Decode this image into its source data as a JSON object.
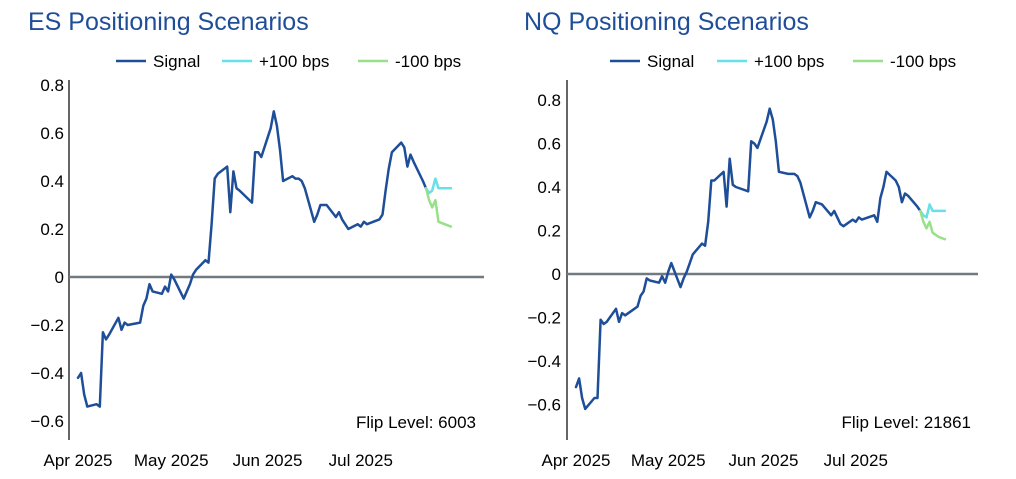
{
  "colors": {
    "signal": "#1f4e99",
    "plus": "#67e0e8",
    "minus": "#98e08a",
    "zero": "#707a80",
    "title": "#1f4e99"
  },
  "chart_data": [
    {
      "type": "line",
      "title": "ES Positioning Scenarios",
      "legend_position": "top",
      "grid": false,
      "ylim": [
        -0.67,
        0.84
      ],
      "y_ticks": [
        -0.6,
        -0.4,
        -0.2,
        0,
        0.2,
        0.4,
        0.6,
        0.8
      ],
      "y_tick_labels": [
        "−0.6",
        "−0.4",
        "−0.2",
        "0",
        "0.2",
        "0.4",
        "0.6",
        "0.8"
      ],
      "x_tick_labels": [
        "Apr 2025",
        "May 2025",
        "Jun 2025",
        "Jul 2025"
      ],
      "x_tick_positions": [
        "2025-04-01",
        "2025-05-01",
        "2025-06-01",
        "2025-07-01"
      ],
      "x_range": [
        "2025-04-01",
        "2025-07-31"
      ],
      "annotation": "Flip Level: 6003",
      "series": [
        {
          "name": "Signal",
          "color": "signal",
          "points": [
            [
              "2025-04-01",
              -0.42
            ],
            [
              "2025-04-02",
              -0.4
            ],
            [
              "2025-04-03",
              -0.49
            ],
            [
              "2025-04-04",
              -0.54
            ],
            [
              "2025-04-07",
              -0.53
            ],
            [
              "2025-04-08",
              -0.54
            ],
            [
              "2025-04-09",
              -0.23
            ],
            [
              "2025-04-10",
              -0.26
            ],
            [
              "2025-04-11",
              -0.24
            ],
            [
              "2025-04-14",
              -0.17
            ],
            [
              "2025-04-15",
              -0.22
            ],
            [
              "2025-04-16",
              -0.19
            ],
            [
              "2025-04-17",
              -0.2
            ],
            [
              "2025-04-21",
              -0.19
            ],
            [
              "2025-04-22",
              -0.12
            ],
            [
              "2025-04-23",
              -0.09
            ],
            [
              "2025-04-24",
              -0.03
            ],
            [
              "2025-04-25",
              -0.06
            ],
            [
              "2025-04-28",
              -0.07
            ],
            [
              "2025-04-29",
              -0.04
            ],
            [
              "2025-04-30",
              -0.06
            ],
            [
              "2025-05-01",
              0.01
            ],
            [
              "2025-05-02",
              -0.01
            ],
            [
              "2025-05-05",
              -0.09
            ],
            [
              "2025-05-06",
              -0.06
            ],
            [
              "2025-05-07",
              -0.03
            ],
            [
              "2025-05-08",
              0.01
            ],
            [
              "2025-05-09",
              0.03
            ],
            [
              "2025-05-12",
              0.07
            ],
            [
              "2025-05-13",
              0.06
            ],
            [
              "2025-05-14",
              0.22
            ],
            [
              "2025-05-15",
              0.41
            ],
            [
              "2025-05-16",
              0.43
            ],
            [
              "2025-05-19",
              0.46
            ],
            [
              "2025-05-20",
              0.27
            ],
            [
              "2025-05-21",
              0.44
            ],
            [
              "2025-05-22",
              0.37
            ],
            [
              "2025-05-23",
              0.36
            ],
            [
              "2025-05-27",
              0.31
            ],
            [
              "2025-05-28",
              0.52
            ],
            [
              "2025-05-29",
              0.52
            ],
            [
              "2025-05-30",
              0.5
            ],
            [
              "2025-06-02",
              0.62
            ],
            [
              "2025-06-03",
              0.69
            ],
            [
              "2025-06-04",
              0.63
            ],
            [
              "2025-06-05",
              0.53
            ],
            [
              "2025-06-06",
              0.4
            ],
            [
              "2025-06-09",
              0.42
            ],
            [
              "2025-06-10",
              0.41
            ],
            [
              "2025-06-11",
              0.41
            ],
            [
              "2025-06-12",
              0.4
            ],
            [
              "2025-06-13",
              0.37
            ],
            [
              "2025-06-16",
              0.23
            ],
            [
              "2025-06-17",
              0.26
            ],
            [
              "2025-06-18",
              0.3
            ],
            [
              "2025-06-20",
              0.3
            ],
            [
              "2025-06-23",
              0.25
            ],
            [
              "2025-06-24",
              0.27
            ],
            [
              "2025-06-25",
              0.24
            ],
            [
              "2025-06-26",
              0.22
            ],
            [
              "2025-06-27",
              0.2
            ],
            [
              "2025-06-30",
              0.22
            ],
            [
              "2025-07-01",
              0.21
            ],
            [
              "2025-07-02",
              0.23
            ],
            [
              "2025-07-03",
              0.22
            ],
            [
              "2025-07-07",
              0.24
            ],
            [
              "2025-07-08",
              0.26
            ],
            [
              "2025-07-09",
              0.36
            ],
            [
              "2025-07-10",
              0.45
            ],
            [
              "2025-07-11",
              0.52
            ],
            [
              "2025-07-14",
              0.56
            ],
            [
              "2025-07-15",
              0.54
            ],
            [
              "2025-07-16",
              0.46
            ],
            [
              "2025-07-17",
              0.51
            ],
            [
              "2025-07-18",
              0.48
            ],
            [
              "2025-07-21",
              0.4
            ],
            [
              "2025-07-22",
              0.37
            ]
          ]
        },
        {
          "name": "+100 bps",
          "color": "plus",
          "points": [
            [
              "2025-07-22",
              0.37
            ],
            [
              "2025-07-23",
              0.35
            ],
            [
              "2025-07-24",
              0.36
            ],
            [
              "2025-07-25",
              0.41
            ],
            [
              "2025-07-26",
              0.37
            ],
            [
              "2025-07-28",
              0.37
            ],
            [
              "2025-07-30",
              0.37
            ]
          ]
        },
        {
          "name": "-100 bps",
          "color": "minus",
          "points": [
            [
              "2025-07-22",
              0.37
            ],
            [
              "2025-07-23",
              0.32
            ],
            [
              "2025-07-24",
              0.29
            ],
            [
              "2025-07-25",
              0.32
            ],
            [
              "2025-07-26",
              0.23
            ],
            [
              "2025-07-28",
              0.22
            ],
            [
              "2025-07-30",
              0.21
            ]
          ]
        }
      ]
    },
    {
      "type": "line",
      "title": "NQ Positioning Scenarios",
      "legend_position": "top",
      "grid": false,
      "ylim": [
        -0.67,
        0.84
      ],
      "y_ticks": [
        -0.6,
        -0.4,
        -0.2,
        0,
        0.2,
        0.4,
        0.6,
        0.8
      ],
      "y_tick_labels": [
        "−0.6",
        "−0.4",
        "−0.2",
        "0",
        "0.2",
        "0.4",
        "0.6",
        "0.8"
      ],
      "x_tick_labels": [
        "Apr 2025",
        "May 2025",
        "Jun 2025",
        "Jul 2025"
      ],
      "x_tick_positions": [
        "2025-04-01",
        "2025-05-01",
        "2025-06-01",
        "2025-07-01"
      ],
      "x_range": [
        "2025-04-01",
        "2025-07-31"
      ],
      "annotation": "Flip Level: 21861",
      "series": [
        {
          "name": "Signal",
          "color": "signal",
          "points": [
            [
              "2025-04-01",
              -0.52
            ],
            [
              "2025-04-02",
              -0.48
            ],
            [
              "2025-04-03",
              -0.57
            ],
            [
              "2025-04-04",
              -0.62
            ],
            [
              "2025-04-07",
              -0.57
            ],
            [
              "2025-04-08",
              -0.57
            ],
            [
              "2025-04-09",
              -0.21
            ],
            [
              "2025-04-10",
              -0.23
            ],
            [
              "2025-04-11",
              -0.22
            ],
            [
              "2025-04-14",
              -0.16
            ],
            [
              "2025-04-15",
              -0.22
            ],
            [
              "2025-04-16",
              -0.18
            ],
            [
              "2025-04-17",
              -0.19
            ],
            [
              "2025-04-21",
              -0.15
            ],
            [
              "2025-04-22",
              -0.1
            ],
            [
              "2025-04-23",
              -0.08
            ],
            [
              "2025-04-24",
              -0.02
            ],
            [
              "2025-04-25",
              -0.03
            ],
            [
              "2025-04-28",
              -0.04
            ],
            [
              "2025-04-29",
              -0.01
            ],
            [
              "2025-04-30",
              -0.04
            ],
            [
              "2025-05-01",
              0.01
            ],
            [
              "2025-05-02",
              0.05
            ],
            [
              "2025-05-05",
              -0.06
            ],
            [
              "2025-05-06",
              -0.02
            ],
            [
              "2025-05-07",
              0.01
            ],
            [
              "2025-05-08",
              0.05
            ],
            [
              "2025-05-09",
              0.09
            ],
            [
              "2025-05-12",
              0.14
            ],
            [
              "2025-05-13",
              0.13
            ],
            [
              "2025-05-14",
              0.24
            ],
            [
              "2025-05-15",
              0.43
            ],
            [
              "2025-05-16",
              0.43
            ],
            [
              "2025-05-19",
              0.47
            ],
            [
              "2025-05-20",
              0.31
            ],
            [
              "2025-05-21",
              0.53
            ],
            [
              "2025-05-22",
              0.41
            ],
            [
              "2025-05-23",
              0.4
            ],
            [
              "2025-05-27",
              0.38
            ],
            [
              "2025-05-28",
              0.61
            ],
            [
              "2025-05-29",
              0.6
            ],
            [
              "2025-05-30",
              0.58
            ],
            [
              "2025-06-02",
              0.7
            ],
            [
              "2025-06-03",
              0.76
            ],
            [
              "2025-06-04",
              0.71
            ],
            [
              "2025-06-05",
              0.61
            ],
            [
              "2025-06-06",
              0.47
            ],
            [
              "2025-06-09",
              0.46
            ],
            [
              "2025-06-10",
              0.46
            ],
            [
              "2025-06-11",
              0.46
            ],
            [
              "2025-06-12",
              0.45
            ],
            [
              "2025-06-13",
              0.42
            ],
            [
              "2025-06-16",
              0.26
            ],
            [
              "2025-06-17",
              0.29
            ],
            [
              "2025-06-18",
              0.33
            ],
            [
              "2025-06-20",
              0.32
            ],
            [
              "2025-06-23",
              0.27
            ],
            [
              "2025-06-24",
              0.29
            ],
            [
              "2025-06-25",
              0.26
            ],
            [
              "2025-06-26",
              0.23
            ],
            [
              "2025-06-27",
              0.22
            ],
            [
              "2025-06-30",
              0.25
            ],
            [
              "2025-07-01",
              0.24
            ],
            [
              "2025-07-02",
              0.26
            ],
            [
              "2025-07-03",
              0.25
            ],
            [
              "2025-07-07",
              0.27
            ],
            [
              "2025-07-08",
              0.24
            ],
            [
              "2025-07-09",
              0.35
            ],
            [
              "2025-07-10",
              0.4
            ],
            [
              "2025-07-11",
              0.47
            ],
            [
              "2025-07-14",
              0.43
            ],
            [
              "2025-07-15",
              0.4
            ],
            [
              "2025-07-16",
              0.33
            ],
            [
              "2025-07-17",
              0.37
            ],
            [
              "2025-07-18",
              0.36
            ],
            [
              "2025-07-21",
              0.31
            ],
            [
              "2025-07-22",
              0.29
            ]
          ]
        },
        {
          "name": "+100 bps",
          "color": "plus",
          "points": [
            [
              "2025-07-22",
              0.29
            ],
            [
              "2025-07-23",
              0.27
            ],
            [
              "2025-07-24",
              0.26
            ],
            [
              "2025-07-25",
              0.32
            ],
            [
              "2025-07-26",
              0.29
            ],
            [
              "2025-07-28",
              0.29
            ],
            [
              "2025-07-30",
              0.29
            ]
          ]
        },
        {
          "name": "-100 bps",
          "color": "minus",
          "points": [
            [
              "2025-07-22",
              0.29
            ],
            [
              "2025-07-23",
              0.24
            ],
            [
              "2025-07-24",
              0.21
            ],
            [
              "2025-07-25",
              0.24
            ],
            [
              "2025-07-26",
              0.19
            ],
            [
              "2025-07-28",
              0.17
            ],
            [
              "2025-07-30",
              0.16
            ]
          ]
        }
      ]
    }
  ]
}
